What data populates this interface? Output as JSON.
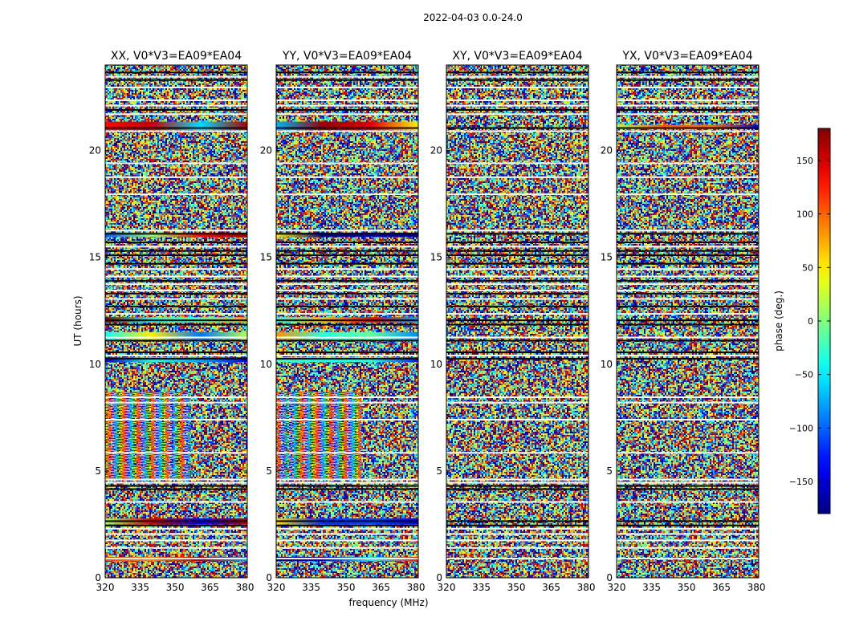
{
  "figure_title": "2022-04-03 0.0-24.0",
  "colors": {
    "background": "#ffffff",
    "frame": "#000000",
    "flag_gap": "#ffffff",
    "flag_dark": "#000000",
    "colormap": "jet"
  },
  "chart_data": {
    "type": "heatmap",
    "title": "2022-04-03 0.0-24.0",
    "xlabel": "frequency (MHz)",
    "ylabel": "UT (hours)",
    "xlim": [
      320,
      381
    ],
    "ylim": [
      0,
      24
    ],
    "xticks": [
      320,
      335,
      350,
      365,
      380
    ],
    "yticks": [
      0,
      5,
      10,
      15,
      20
    ],
    "xtick_labels": [
      "320",
      "335",
      "350",
      "365",
      "380"
    ],
    "ytick_labels": [
      "0",
      "5",
      "10",
      "15",
      "20"
    ],
    "colorbar": {
      "label": "phase (deg.)",
      "range": [
        -180,
        180
      ],
      "ticks": [
        -150,
        -100,
        -50,
        0,
        50,
        100,
        150
      ],
      "tick_labels": [
        "−150",
        "−100",
        "−50",
        "0",
        "50",
        "100",
        "150"
      ]
    },
    "flagged_gaps_ut": [
      0.9,
      1.4,
      1.75,
      2.05,
      2.3,
      3.55,
      4.45,
      4.6,
      5.85,
      7.4,
      8.2,
      8.45,
      10.4,
      11.25,
      12.35,
      13.05,
      13.45,
      13.75,
      14.1,
      14.45,
      15.5,
      16.25,
      17.95,
      18.75,
      19.4,
      20.9,
      21.7,
      22.1,
      22.35,
      22.95,
      23.45
    ],
    "flagged_dark_ut": [
      2.45,
      2.65,
      4.15,
      4.3,
      10.25,
      10.55,
      11.1,
      11.85,
      12.05,
      12.7,
      13.3,
      13.9,
      14.7,
      15.1,
      15.3,
      15.7,
      16.1,
      21.05,
      21.9,
      23.3,
      23.65
    ],
    "panels": [
      {
        "title": "XX, V0*V3=EA09*EA04",
        "coherent_bands_ut": [
          [
            0.78,
            0.98
          ],
          [
            2.5,
            2.78
          ],
          [
            10.1,
            10.32
          ],
          [
            11.15,
            11.5
          ],
          [
            11.95,
            12.2
          ],
          [
            15.95,
            16.15
          ],
          [
            20.95,
            21.35
          ]
        ],
        "fringe_band_ut": [
          4.6,
          8.7
        ]
      },
      {
        "title": "YY, V0*V3=EA09*EA04",
        "coherent_bands_ut": [
          [
            0.78,
            0.98
          ],
          [
            2.5,
            2.78
          ],
          [
            10.1,
            10.32
          ],
          [
            11.15,
            11.5
          ],
          [
            11.95,
            12.2
          ],
          [
            15.95,
            16.15
          ],
          [
            20.95,
            21.35
          ]
        ],
        "fringe_band_ut": [
          4.6,
          8.7
        ]
      },
      {
        "title": "XY, V0*V3=EA09*EA04",
        "coherent_bands_ut": [],
        "fringe_band_ut": null
      },
      {
        "title": "YX, V0*V3=EA09*EA04",
        "coherent_bands_ut": [
          [
            21.0,
            21.2
          ]
        ],
        "fringe_band_ut": null
      }
    ]
  }
}
